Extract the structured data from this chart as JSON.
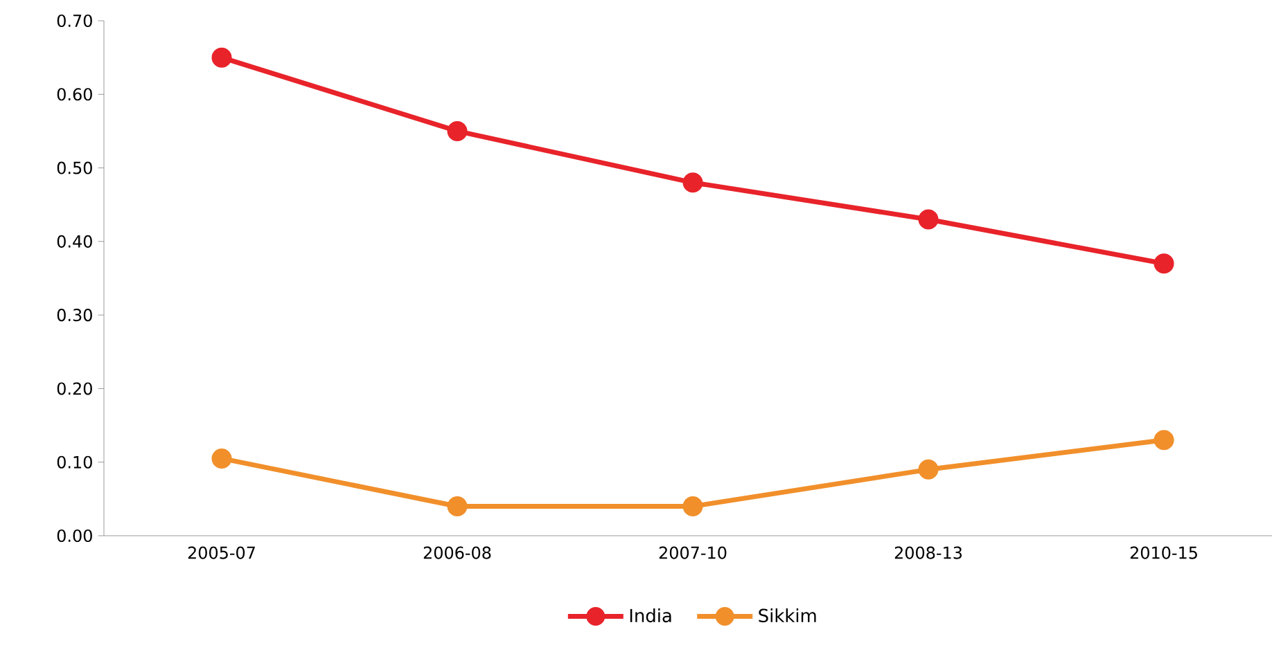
{
  "chart_data": {
    "type": "line",
    "categories": [
      "2005-07",
      "2006-08",
      "2007-10",
      "2008-13",
      "2010-15"
    ],
    "series": [
      {
        "name": "India",
        "color": "#e8232a",
        "values": [
          0.65,
          0.55,
          0.48,
          0.43,
          0.37
        ]
      },
      {
        "name": "Sikkim",
        "color": "#f18f2b",
        "values": [
          0.105,
          0.04,
          0.04,
          0.09,
          0.13
        ]
      }
    ],
    "ylim": [
      0,
      0.7
    ],
    "yticks": [
      {
        "value": 0,
        "label": "0.00"
      },
      {
        "value": 0.1,
        "label": "0.10"
      },
      {
        "value": 0.2,
        "label": "0.20"
      },
      {
        "value": 0.3,
        "label": "0.30"
      },
      {
        "value": 0.4,
        "label": "0.40"
      },
      {
        "value": 0.5,
        "label": "0.50"
      },
      {
        "value": 0.6,
        "label": "0.60"
      },
      {
        "value": 0.7,
        "label": "0.70"
      }
    ],
    "legend": "bottom",
    "marker": "circle",
    "line_style": "solid"
  }
}
